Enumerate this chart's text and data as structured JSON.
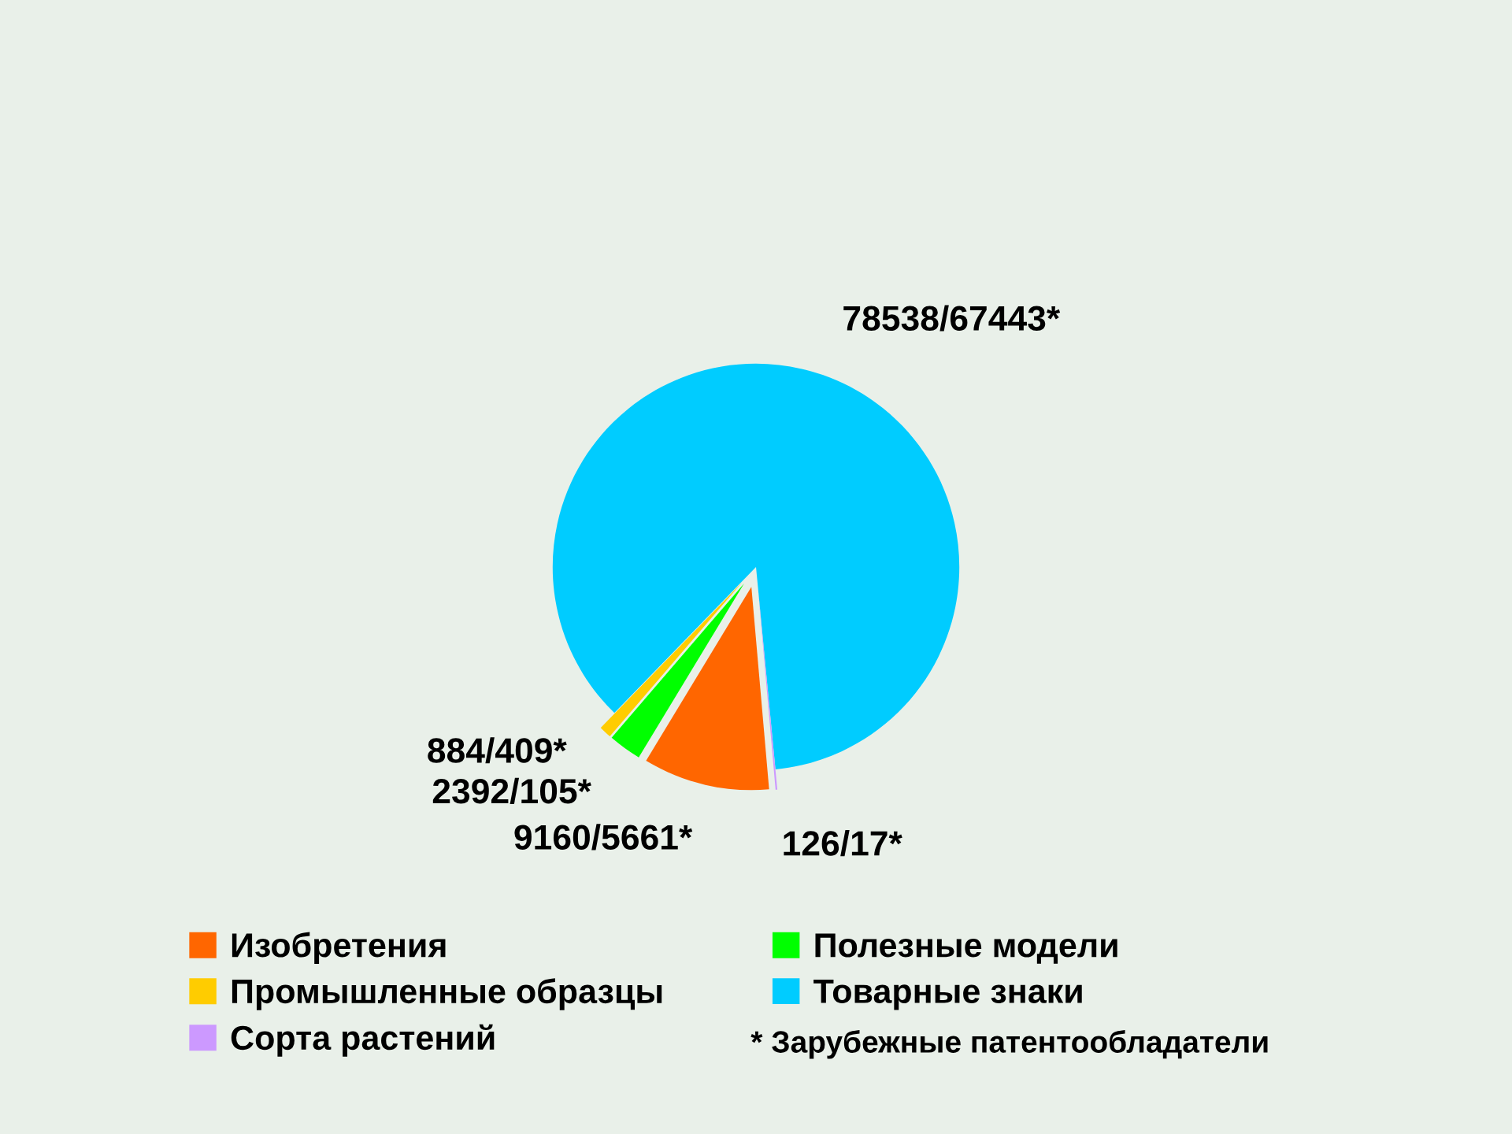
{
  "chart_data": {
    "type": "pie",
    "categories": [
      "Изобретения",
      "Полезные модели",
      "Промышленные образцы",
      "Товарные знаки",
      "Сорта растений"
    ],
    "values": [
      9160,
      2392,
      884,
      78538,
      126
    ],
    "colors": [
      "#ff6600",
      "#00ff00",
      "#ffcc00",
      "#00ccff",
      "#cc99ff"
    ],
    "value_labels": [
      "9160/5661*",
      "2392/105*",
      "884/409*",
      "78538/67443*",
      "126/17*"
    ],
    "annotations": [
      "* Зарубежные патентообладатели"
    ],
    "legend": "bottom"
  }
}
